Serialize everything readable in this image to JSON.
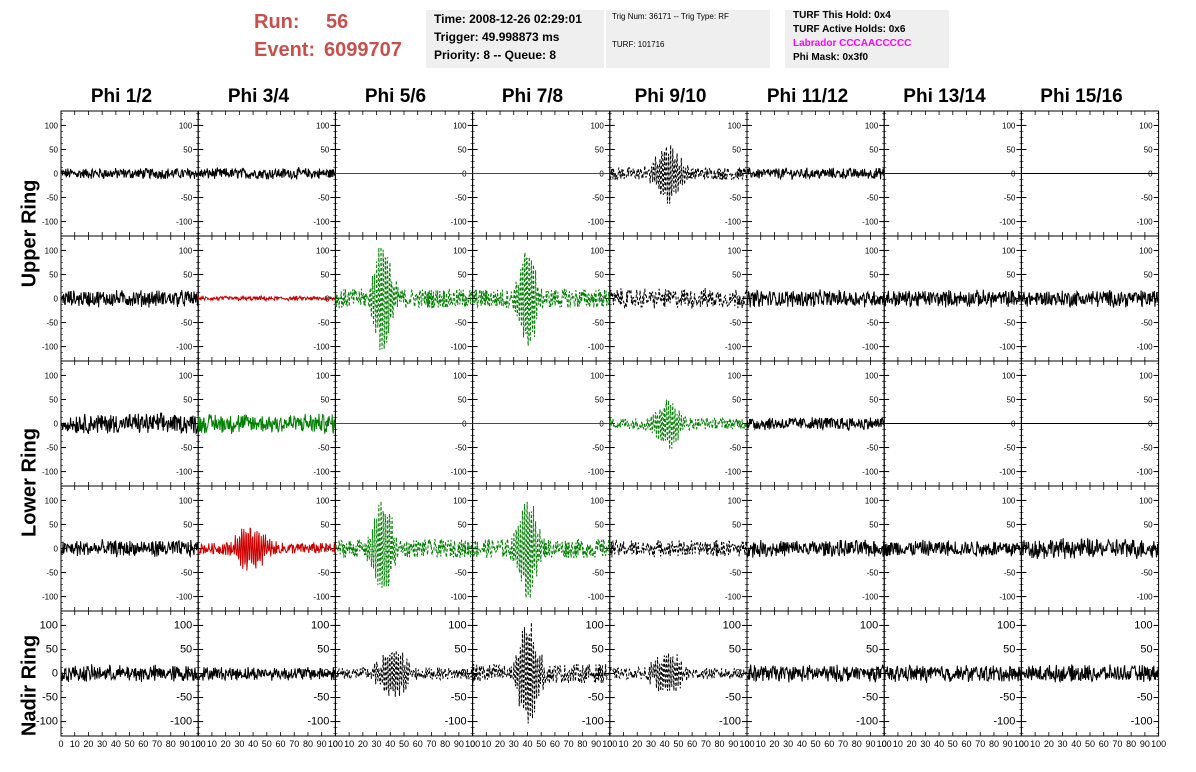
{
  "header": {
    "run_label": "Run:",
    "run_value": "56",
    "event_label": "Event:",
    "event_value": "6099707"
  },
  "info_time": {
    "time": "Time: 2008-12-26 02:29:01",
    "trigger": "Trigger: 49.998873 ms",
    "priority": "Priority: 8 -- Queue: 8"
  },
  "info_trig": {
    "trig": "Trig Num: 36171 -- Trig Type: RF",
    "turf": "TURF: 101716"
  },
  "info_turf": {
    "hold": "TURF This Hold: 0x4",
    "active": "TURF Active Holds: 0x6",
    "labrador": "Labrador CCCAACCCCC",
    "phimask": "Phi Mask: 0x3f0",
    "labrador_color": "#ff00ff"
  },
  "columns": [
    "Phi 1/2",
    "Phi 3/4",
    "Phi 5/6",
    "Phi 7/8",
    "Phi 9/10",
    "Phi 11/12",
    "Phi 13/14",
    "Phi 15/16"
  ],
  "row_groups": [
    "Upper Ring",
    "Lower Ring",
    "Nadir Ring"
  ],
  "chart_data": {
    "type": "line",
    "xlim": [
      0,
      100
    ],
    "ylim": [
      -130,
      130
    ],
    "yticks": [
      100,
      50,
      0,
      -50,
      -100
    ],
    "xticks": [
      0,
      10,
      20,
      30,
      40,
      50,
      60,
      70,
      80,
      90,
      100
    ],
    "colors": {
      "black": "#000000",
      "green": "#008000",
      "red": "#cc0000",
      "blue": "#0000cc"
    },
    "panels": [
      [
        {
          "style": "noise",
          "amp": 10,
          "color": "black",
          "dash": false
        },
        {
          "style": "noise",
          "amp": 10,
          "color": "black",
          "dash": false
        },
        {
          "style": "flat",
          "color": "green"
        },
        {
          "style": "flat",
          "color": "green"
        },
        {
          "style": "burst",
          "amp": 60,
          "center": 42,
          "width": 10,
          "color": "black",
          "dash": true
        },
        {
          "style": "noise",
          "amp": 10,
          "color": "black",
          "dash": false
        },
        {
          "style": "flat",
          "color": "blue"
        },
        {
          "style": "flat",
          "color": "black"
        }
      ],
      [
        {
          "style": "noise",
          "amp": 15,
          "color": "black",
          "dash": false
        },
        {
          "style": "noise",
          "amp": 4,
          "color": "red",
          "dash": false
        },
        {
          "style": "burst",
          "amp": 120,
          "center": 35,
          "width": 7,
          "color": "green",
          "dash": true
        },
        {
          "style": "burst",
          "amp": 120,
          "center": 40,
          "width": 7,
          "color": "green",
          "dash": true
        },
        {
          "style": "noise",
          "amp": 18,
          "color": "black",
          "dash": true
        },
        {
          "style": "noise",
          "amp": 15,
          "color": "black",
          "dash": false
        },
        {
          "style": "noise",
          "amp": 15,
          "color": "black",
          "dash": false
        },
        {
          "style": "noise",
          "amp": 15,
          "color": "black",
          "dash": false
        }
      ],
      [
        {
          "style": "noise",
          "amp": 18,
          "color": "black",
          "dash": false
        },
        {
          "style": "noise",
          "amp": 18,
          "color": "green",
          "dash": false
        },
        {
          "style": "flat",
          "color": "green"
        },
        {
          "style": "flat",
          "color": "green"
        },
        {
          "style": "burst",
          "amp": 50,
          "center": 42,
          "width": 10,
          "color": "green",
          "dash": true
        },
        {
          "style": "noise",
          "amp": 12,
          "color": "black",
          "dash": false
        },
        {
          "style": "flat",
          "color": "black"
        },
        {
          "style": "flat",
          "color": "black"
        }
      ],
      [
        {
          "style": "noise",
          "amp": 15,
          "color": "black",
          "dash": false
        },
        {
          "style": "burst",
          "amp": 45,
          "center": 38,
          "width": 12,
          "color": "red",
          "dash": false
        },
        {
          "style": "burst",
          "amp": 110,
          "center": 35,
          "width": 8,
          "color": "green",
          "dash": true
        },
        {
          "style": "burst",
          "amp": 115,
          "center": 40,
          "width": 7,
          "color": "green",
          "dash": true
        },
        {
          "style": "noise",
          "amp": 15,
          "color": "black",
          "dash": true
        },
        {
          "style": "noise",
          "amp": 15,
          "color": "black",
          "dash": false
        },
        {
          "style": "noise",
          "amp": 15,
          "color": "black",
          "dash": false
        },
        {
          "style": "noise",
          "amp": 18,
          "color": "black",
          "dash": false
        }
      ],
      [
        {
          "style": "noise",
          "amp": 15,
          "color": "black",
          "dash": false
        },
        {
          "style": "noise",
          "amp": 12,
          "color": "black",
          "dash": false
        },
        {
          "style": "burst",
          "amp": 55,
          "center": 42,
          "width": 10,
          "color": "black",
          "dash": true
        },
        {
          "style": "burst",
          "amp": 115,
          "center": 40,
          "width": 8,
          "color": "black",
          "dash": true
        },
        {
          "style": "burst",
          "amp": 45,
          "center": 42,
          "width": 11,
          "color": "black",
          "dash": true
        },
        {
          "style": "noise",
          "amp": 15,
          "color": "black",
          "dash": false
        },
        {
          "style": "noise",
          "amp": 15,
          "color": "black",
          "dash": false
        },
        {
          "style": "noise",
          "amp": 15,
          "color": "black",
          "dash": false
        }
      ]
    ]
  }
}
